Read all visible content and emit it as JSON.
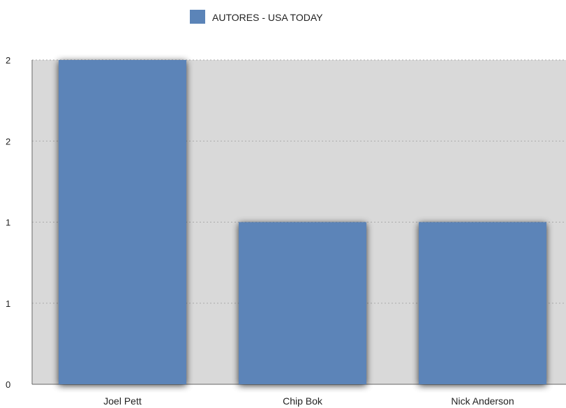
{
  "chart_data": {
    "type": "bar",
    "categories": [
      "Joel Pett",
      "Chip Bok",
      "Nick Anderson"
    ],
    "series": [
      {
        "name": "AUTORES - USA TODAY",
        "values": [
          2,
          1,
          1
        ],
        "color": "#5b84b8"
      }
    ],
    "y_tick_labels": [
      "0",
      "1",
      "1",
      "2",
      "2"
    ],
    "ylim": [
      0,
      2
    ],
    "grid": true,
    "legend": "top-center",
    "plot_background": "#d9d9d9"
  }
}
